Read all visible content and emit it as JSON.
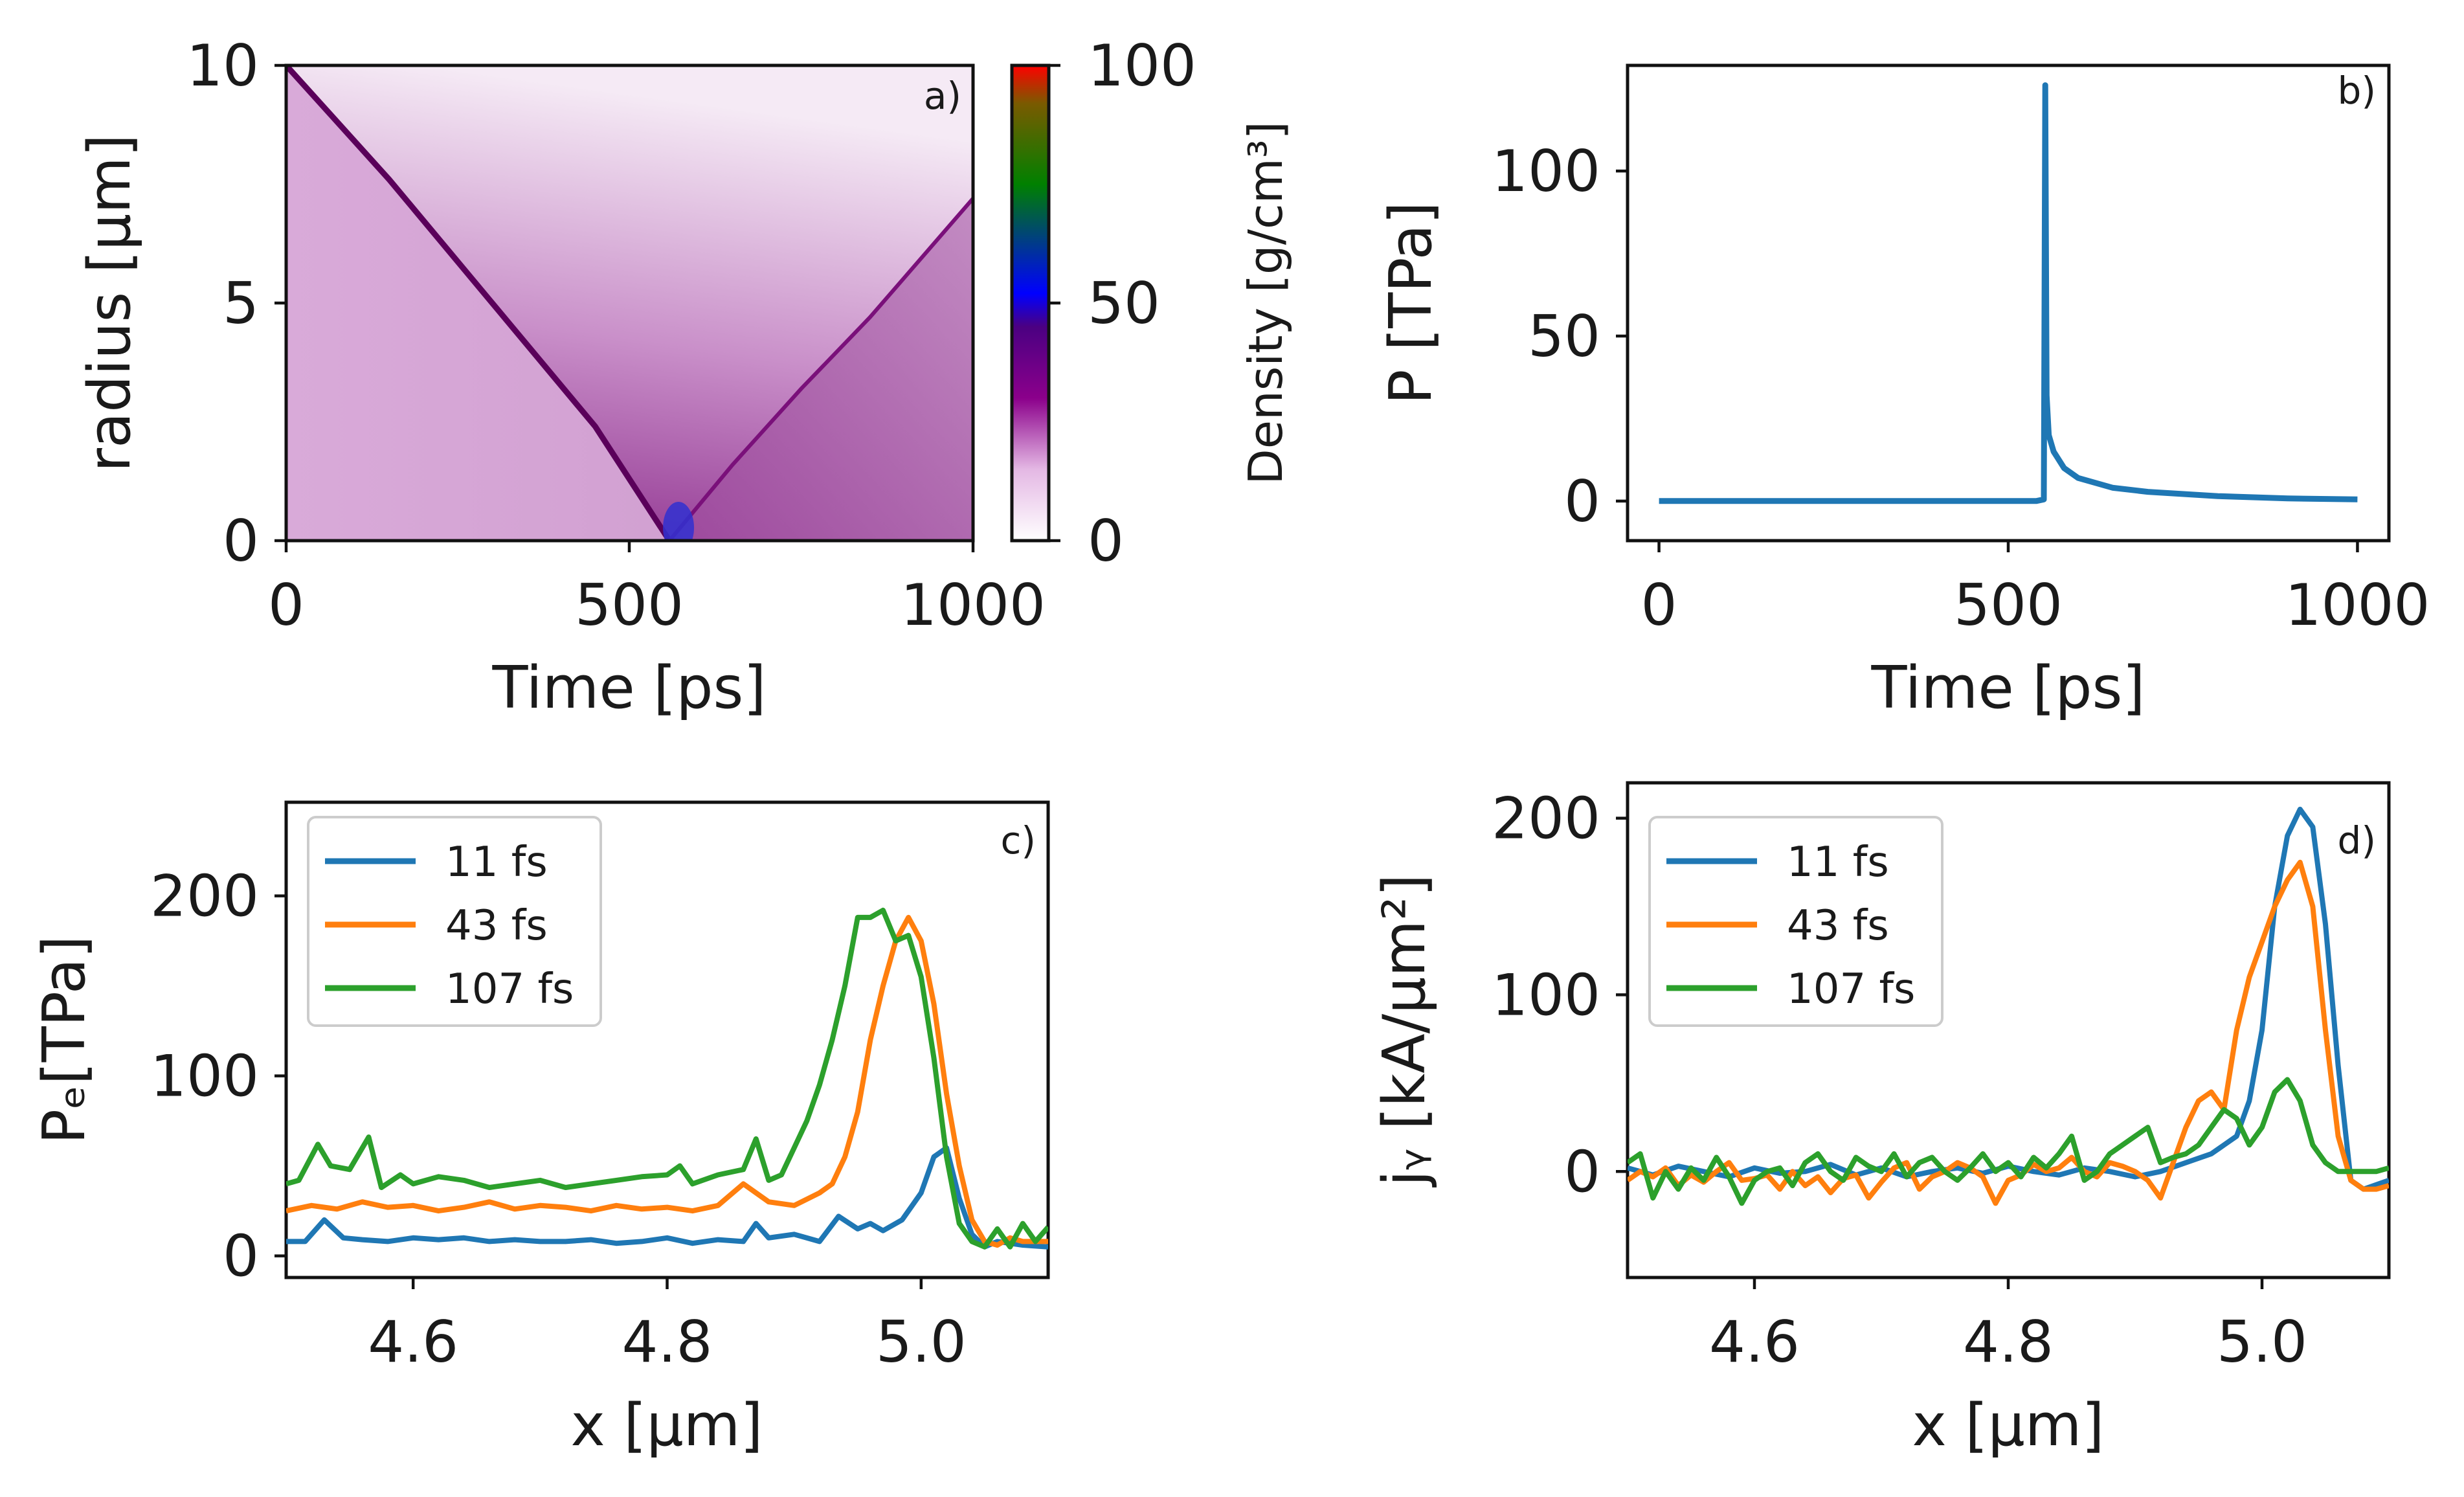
{
  "chart_data": [
    {
      "panel": "a)",
      "type": "heatmap",
      "xlabel": "Time [ps]",
      "ylabel": "radius [μm]",
      "xlim": [
        0,
        1000
      ],
      "ylim": [
        0,
        10
      ],
      "xticks": [
        "0",
        "500",
        "1000"
      ],
      "yticks": [
        "0",
        "5",
        "10"
      ],
      "colorbar": {
        "label": "Density [g/cm³]",
        "range": [
          0,
          100
        ],
        "ticks": [
          "0",
          "50",
          "100"
        ],
        "colors": [
          "#ffffff",
          "#800080",
          "#0000ff",
          "#008000",
          "#ff0000"
        ]
      },
      "features": {
        "ingoing_shock": [
          [
            0,
            10
          ],
          [
            150,
            7.6
          ],
          [
            300,
            5.0
          ],
          [
            450,
            2.4
          ],
          [
            558,
            0
          ]
        ],
        "outgoing_shock": [
          [
            558,
            0
          ],
          [
            650,
            1.6
          ],
          [
            750,
            3.2
          ],
          [
            850,
            4.7
          ],
          [
            1000,
            7.2
          ]
        ],
        "peak_time": 558
      }
    },
    {
      "panel": "b)",
      "type": "line",
      "xlabel": "Time [ps]",
      "ylabel": "P [TPa]",
      "xlim": [
        -45,
        1045
      ],
      "ylim": [
        -12,
        132
      ],
      "xticks": [
        "0",
        "500",
        "1000"
      ],
      "yticks": [
        "0",
        "50",
        "100"
      ],
      "color": "#1f77b4",
      "x": [
        0,
        100,
        200,
        300,
        400,
        500,
        540,
        551,
        553,
        555,
        558,
        565,
        580,
        600,
        650,
        700,
        800,
        900,
        1000
      ],
      "y": [
        0,
        0,
        0,
        0,
        0,
        0,
        0,
        0.5,
        126,
        32,
        20,
        15,
        10,
        7,
        4,
        2.8,
        1.5,
        0.8,
        0.5
      ]
    },
    {
      "panel": "c)",
      "type": "line",
      "xlabel": "x [μm]",
      "ylabel": "Pₑ[TPa]",
      "xlim": [
        4.5,
        5.1
      ],
      "ylim": [
        -12,
        252
      ],
      "xticks": [
        "4.6",
        "4.8",
        "5.0"
      ],
      "yticks": [
        "0",
        "100",
        "200"
      ],
      "legend": "upper-left",
      "series": [
        {
          "name": "11 fs",
          "color": "#1f77b4",
          "x": [
            4.5,
            4.515,
            4.53,
            4.545,
            4.56,
            4.58,
            4.6,
            4.62,
            4.64,
            4.66,
            4.68,
            4.7,
            4.72,
            4.74,
            4.76,
            4.78,
            4.8,
            4.82,
            4.84,
            4.86,
            4.87,
            4.88,
            4.9,
            4.92,
            4.935,
            4.95,
            4.96,
            4.97,
            4.985,
            5.0,
            5.01,
            5.02,
            5.03,
            5.04,
            5.05,
            5.06,
            5.07,
            5.08,
            5.1
          ],
          "y": [
            8,
            8,
            20,
            10,
            9,
            8,
            10,
            9,
            10,
            8,
            9,
            8,
            8,
            9,
            7,
            8,
            10,
            7,
            9,
            8,
            18,
            10,
            12,
            8,
            22,
            15,
            18,
            14,
            20,
            35,
            55,
            60,
            32,
            12,
            5,
            8,
            7,
            6,
            5
          ]
        },
        {
          "name": "43 fs",
          "color": "#ff7f0e",
          "x": [
            4.5,
            4.52,
            4.54,
            4.56,
            4.58,
            4.6,
            4.62,
            4.64,
            4.66,
            4.68,
            4.7,
            4.72,
            4.74,
            4.76,
            4.78,
            4.8,
            4.82,
            4.84,
            4.86,
            4.88,
            4.9,
            4.92,
            4.93,
            4.94,
            4.95,
            4.96,
            4.97,
            4.98,
            4.99,
            5.0,
            5.01,
            5.02,
            5.03,
            5.04,
            5.05,
            5.06,
            5.07,
            5.08,
            5.1
          ],
          "y": [
            25,
            28,
            26,
            30,
            27,
            28,
            25,
            27,
            30,
            26,
            28,
            27,
            25,
            28,
            26,
            27,
            25,
            28,
            40,
            30,
            28,
            35,
            40,
            55,
            80,
            120,
            150,
            175,
            188,
            175,
            140,
            90,
            50,
            20,
            8,
            6,
            10,
            8,
            8
          ]
        },
        {
          "name": "107 fs",
          "color": "#2ca02c",
          "x": [
            4.5,
            4.51,
            4.525,
            4.535,
            4.55,
            4.565,
            4.575,
            4.59,
            4.6,
            4.62,
            4.64,
            4.66,
            4.68,
            4.7,
            4.72,
            4.74,
            4.76,
            4.78,
            4.8,
            4.81,
            4.82,
            4.84,
            4.86,
            4.87,
            4.88,
            4.89,
            4.9,
            4.91,
            4.92,
            4.93,
            4.94,
            4.95,
            4.96,
            4.97,
            4.98,
            4.99,
            5.0,
            5.01,
            5.02,
            5.03,
            5.04,
            5.05,
            5.06,
            5.07,
            5.08,
            5.09,
            5.1
          ],
          "y": [
            40,
            42,
            62,
            50,
            48,
            66,
            38,
            45,
            40,
            44,
            42,
            38,
            40,
            42,
            38,
            40,
            42,
            44,
            45,
            50,
            40,
            45,
            48,
            65,
            42,
            45,
            60,
            75,
            95,
            120,
            150,
            188,
            188,
            192,
            175,
            178,
            155,
            110,
            55,
            18,
            8,
            5,
            15,
            5,
            18,
            8,
            16
          ]
        }
      ]
    },
    {
      "panel": "d)",
      "type": "line",
      "xlabel": "x [μm]",
      "ylabel": "jᵧ [kA/μm²]",
      "xlim": [
        4.5,
        5.1
      ],
      "ylim": [
        -60,
        220
      ],
      "xticks": [
        "4.6",
        "4.8",
        "5.0"
      ],
      "yticks": [
        "0",
        "100",
        "200"
      ],
      "legend": "upper-left",
      "series": [
        {
          "name": "11 fs",
          "color": "#1f77b4",
          "x": [
            4.5,
            4.52,
            4.54,
            4.56,
            4.58,
            4.6,
            4.62,
            4.64,
            4.66,
            4.68,
            4.7,
            4.72,
            4.74,
            4.76,
            4.78,
            4.8,
            4.82,
            4.84,
            4.86,
            4.88,
            4.9,
            4.92,
            4.94,
            4.96,
            4.97,
            4.98,
            4.99,
            5.0,
            5.01,
            5.02,
            5.03,
            5.04,
            5.05,
            5.06,
            5.07,
            5.08,
            5.1
          ],
          "y": [
            2,
            -2,
            3,
            0,
            -3,
            2,
            -1,
            0,
            4,
            -2,
            2,
            -3,
            0,
            2,
            -1,
            3,
            0,
            -2,
            2,
            0,
            -3,
            0,
            5,
            10,
            15,
            20,
            40,
            80,
            150,
            190,
            205,
            195,
            140,
            60,
            -5,
            -10,
            -5
          ]
        },
        {
          "name": "43 fs",
          "color": "#ff7f0e",
          "x": [
            4.5,
            4.51,
            4.52,
            4.53,
            4.54,
            4.55,
            4.56,
            4.57,
            4.58,
            4.59,
            4.6,
            4.61,
            4.62,
            4.63,
            4.64,
            4.65,
            4.66,
            4.67,
            4.68,
            4.69,
            4.7,
            4.71,
            4.72,
            4.73,
            4.74,
            4.75,
            4.76,
            4.77,
            4.78,
            4.79,
            4.8,
            4.81,
            4.82,
            4.83,
            4.84,
            4.85,
            4.86,
            4.87,
            4.88,
            4.89,
            4.9,
            4.91,
            4.92,
            4.93,
            4.94,
            4.95,
            4.96,
            4.97,
            4.98,
            4.99,
            5.0,
            5.01,
            5.02,
            5.03,
            5.04,
            5.05,
            5.06,
            5.07,
            5.08,
            5.09,
            5.1
          ],
          "y": [
            -5,
            0,
            -3,
            2,
            -8,
            -2,
            -6,
            0,
            5,
            -5,
            -4,
            -2,
            -10,
            0,
            -8,
            -3,
            -12,
            -4,
            -2,
            -15,
            -6,
            2,
            5,
            -10,
            -3,
            0,
            5,
            2,
            -3,
            -18,
            -5,
            -2,
            4,
            0,
            2,
            8,
            0,
            -3,
            5,
            3,
            0,
            -5,
            -15,
            5,
            25,
            40,
            45,
            35,
            80,
            110,
            130,
            150,
            165,
            175,
            150,
            80,
            20,
            -5,
            -10,
            -10,
            -8
          ]
        },
        {
          "name": "107 fs",
          "color": "#2ca02c",
          "x": [
            4.5,
            4.51,
            4.52,
            4.53,
            4.54,
            4.55,
            4.56,
            4.57,
            4.58,
            4.59,
            4.6,
            4.61,
            4.62,
            4.63,
            4.64,
            4.65,
            4.66,
            4.67,
            4.68,
            4.69,
            4.7,
            4.71,
            4.72,
            4.73,
            4.74,
            4.75,
            4.76,
            4.77,
            4.78,
            4.79,
            4.8,
            4.81,
            4.82,
            4.83,
            4.84,
            4.85,
            4.86,
            4.87,
            4.88,
            4.89,
            4.9,
            4.91,
            4.92,
            4.93,
            4.94,
            4.95,
            4.96,
            4.97,
            4.98,
            4.99,
            5.0,
            5.01,
            5.02,
            5.03,
            5.04,
            5.05,
            5.06,
            5.07,
            5.08,
            5.09,
            5.1
          ],
          "y": [
            5,
            10,
            -15,
            0,
            -10,
            2,
            -5,
            8,
            -3,
            -18,
            -5,
            0,
            2,
            -8,
            5,
            10,
            0,
            -5,
            8,
            3,
            0,
            10,
            -3,
            5,
            8,
            0,
            -5,
            2,
            10,
            0,
            5,
            -3,
            8,
            2,
            10,
            20,
            -5,
            0,
            10,
            15,
            20,
            25,
            5,
            8,
            10,
            15,
            25,
            35,
            30,
            15,
            25,
            45,
            52,
            40,
            15,
            5,
            0,
            0,
            0,
            0,
            2
          ]
        }
      ]
    }
  ]
}
